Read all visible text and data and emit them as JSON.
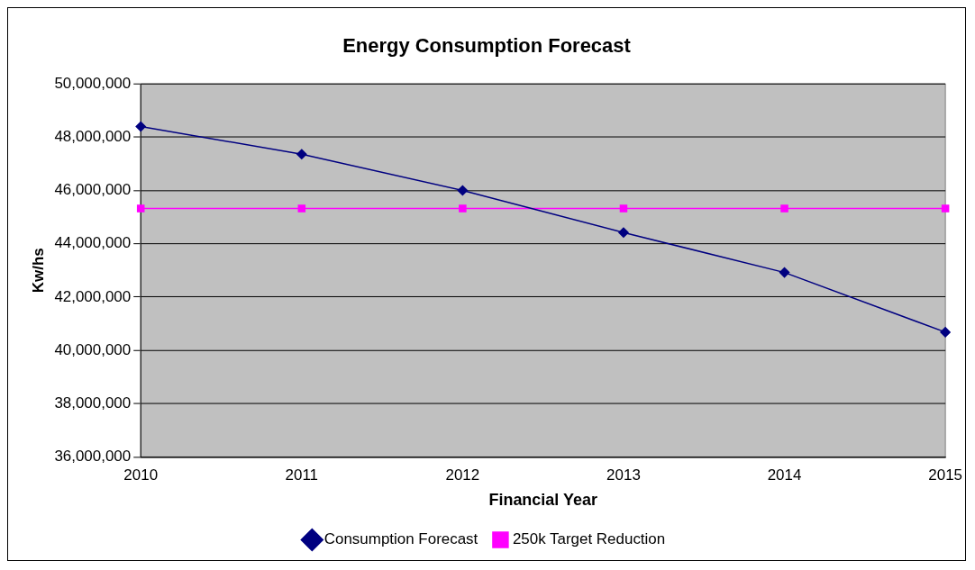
{
  "chart_data": {
    "type": "line",
    "title": "Energy Consumption Forecast",
    "xlabel": "Financial Year",
    "ylabel": "Kw/hs",
    "categories": [
      "2010",
      "2011",
      "2012",
      "2013",
      "2014",
      "2015"
    ],
    "series": [
      {
        "name": "Consumption Forecast",
        "color": "#000080",
        "marker": "diamond",
        "values": [
          48400000,
          47360000,
          46000000,
          44420000,
          42920000,
          40680000
        ]
      },
      {
        "name": "250k Target Reduction",
        "color": "#ff00ff",
        "marker": "square",
        "values": [
          45320000,
          45320000,
          45320000,
          45320000,
          45320000,
          45320000
        ]
      }
    ],
    "ylim": [
      36000000,
      50000000
    ],
    "yticks": [
      {
        "value": 36000000,
        "label": "36,000,000"
      },
      {
        "value": 38000000,
        "label": "38,000,000"
      },
      {
        "value": 40000000,
        "label": "40,000,000"
      },
      {
        "value": 42000000,
        "label": "42,000,000"
      },
      {
        "value": 44000000,
        "label": "44,000,000"
      },
      {
        "value": 46000000,
        "label": "46,000,000"
      },
      {
        "value": 48000000,
        "label": "48,000,000"
      },
      {
        "value": 50000000,
        "label": "50,000,000"
      }
    ],
    "grid": "y",
    "legend": "bottom",
    "line_style": "solid"
  }
}
